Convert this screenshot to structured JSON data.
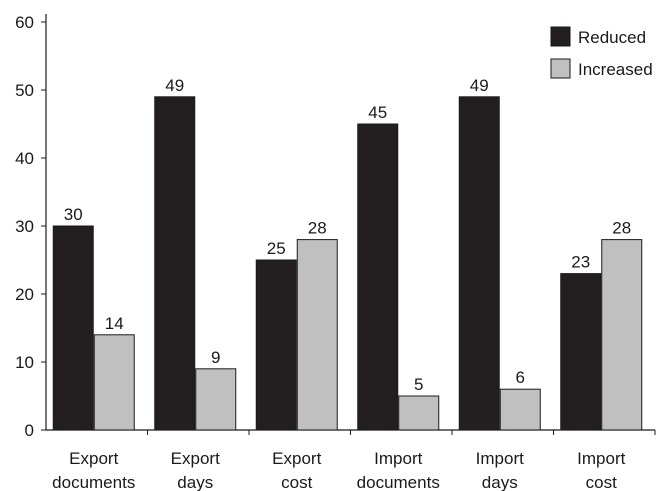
{
  "chart_data": {
    "type": "bar",
    "title": "",
    "xlabel": "",
    "ylabel": "",
    "ylim": [
      0,
      60
    ],
    "yticks": [
      0,
      10,
      20,
      30,
      40,
      50,
      60
    ],
    "grid": false,
    "legend_position": "top-right",
    "categories": [
      [
        "Export",
        "documents"
      ],
      [
        "Export",
        "days"
      ],
      [
        "Export",
        "cost"
      ],
      [
        "Import",
        "documents"
      ],
      [
        "Import",
        "days"
      ],
      [
        "Import",
        "cost"
      ]
    ],
    "series": [
      {
        "name": "Reduced",
        "color": "#231f20",
        "values": [
          30,
          49,
          25,
          45,
          49,
          23
        ]
      },
      {
        "name": "Increased",
        "color": "#c0c0c0",
        "values": [
          14,
          9,
          28,
          5,
          6,
          28
        ]
      }
    ]
  }
}
